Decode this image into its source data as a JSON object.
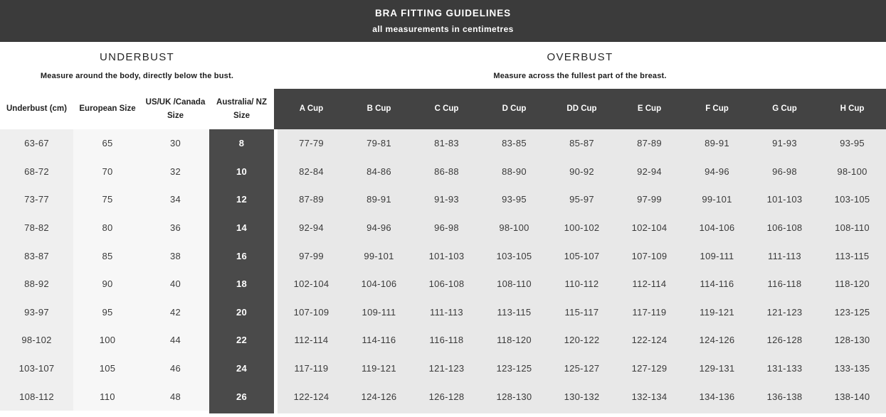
{
  "banner": {
    "title": "BRA FITTING GUIDELINES",
    "subtitle": "all measurements in centimetres"
  },
  "sections": {
    "underbust": {
      "title": "UNDERBUST",
      "description": "Measure around the body, directly below the bust."
    },
    "overbust": {
      "title": "OVERBUST",
      "description": "Measure across the fullest part of the breast."
    }
  },
  "table": {
    "left_columns": [
      "Underbust (cm)",
      "European Size",
      "US/UK /Canada Size",
      "Australia/ NZ Size"
    ],
    "cup_columns": [
      "A Cup",
      "B Cup",
      "C Cup",
      "D Cup",
      "DD Cup",
      "E Cup",
      "F Cup",
      "G Cup",
      "H Cup"
    ],
    "rows": [
      [
        "63-67",
        "65",
        "30",
        "8",
        "77-79",
        "79-81",
        "81-83",
        "83-85",
        "85-87",
        "87-89",
        "89-91",
        "91-93",
        "93-95"
      ],
      [
        "68-72",
        "70",
        "32",
        "10",
        "82-84",
        "84-86",
        "86-88",
        "88-90",
        "90-92",
        "92-94",
        "94-96",
        "96-98",
        "98-100"
      ],
      [
        "73-77",
        "75",
        "34",
        "12",
        "87-89",
        "89-91",
        "91-93",
        "93-95",
        "95-97",
        "97-99",
        "99-101",
        "101-103",
        "103-105"
      ],
      [
        "78-82",
        "80",
        "36",
        "14",
        "92-94",
        "94-96",
        "96-98",
        "98-100",
        "100-102",
        "102-104",
        "104-106",
        "106-108",
        "108-110"
      ],
      [
        "83-87",
        "85",
        "38",
        "16",
        "97-99",
        "99-101",
        "101-103",
        "103-105",
        "105-107",
        "107-109",
        "109-111",
        "111-113",
        "113-115"
      ],
      [
        "88-92",
        "90",
        "40",
        "18",
        "102-104",
        "104-106",
        "106-108",
        "108-110",
        "110-112",
        "112-114",
        "114-116",
        "116-118",
        "118-120"
      ],
      [
        "93-97",
        "95",
        "42",
        "20",
        "107-109",
        "109-111",
        "111-113",
        "113-115",
        "115-117",
        "117-119",
        "119-121",
        "121-123",
        "123-125"
      ],
      [
        "98-102",
        "100",
        "44",
        "22",
        "112-114",
        "114-116",
        "116-118",
        "118-120",
        "120-122",
        "122-124",
        "124-126",
        "126-128",
        "128-130"
      ],
      [
        "103-107",
        "105",
        "46",
        "24",
        "117-119",
        "119-121",
        "121-123",
        "123-125",
        "125-127",
        "127-129",
        "129-131",
        "131-133",
        "133-135"
      ],
      [
        "108-112",
        "110",
        "48",
        "26",
        "122-124",
        "124-126",
        "126-128",
        "128-130",
        "130-132",
        "132-134",
        "134-136",
        "136-138",
        "138-140"
      ]
    ]
  },
  "colors": {
    "banner_bg": "#3b3b3b",
    "cup_header_bg": "#434343",
    "aus_nz_column_bg": "#4a4a4a",
    "underbust_column_bg": "#efefef",
    "middle_columns_bg": "#f7f7f7",
    "cup_body_bg": "#e8e8e8",
    "text_dark": "#2f2f2f",
    "text_light": "#ffffff"
  }
}
